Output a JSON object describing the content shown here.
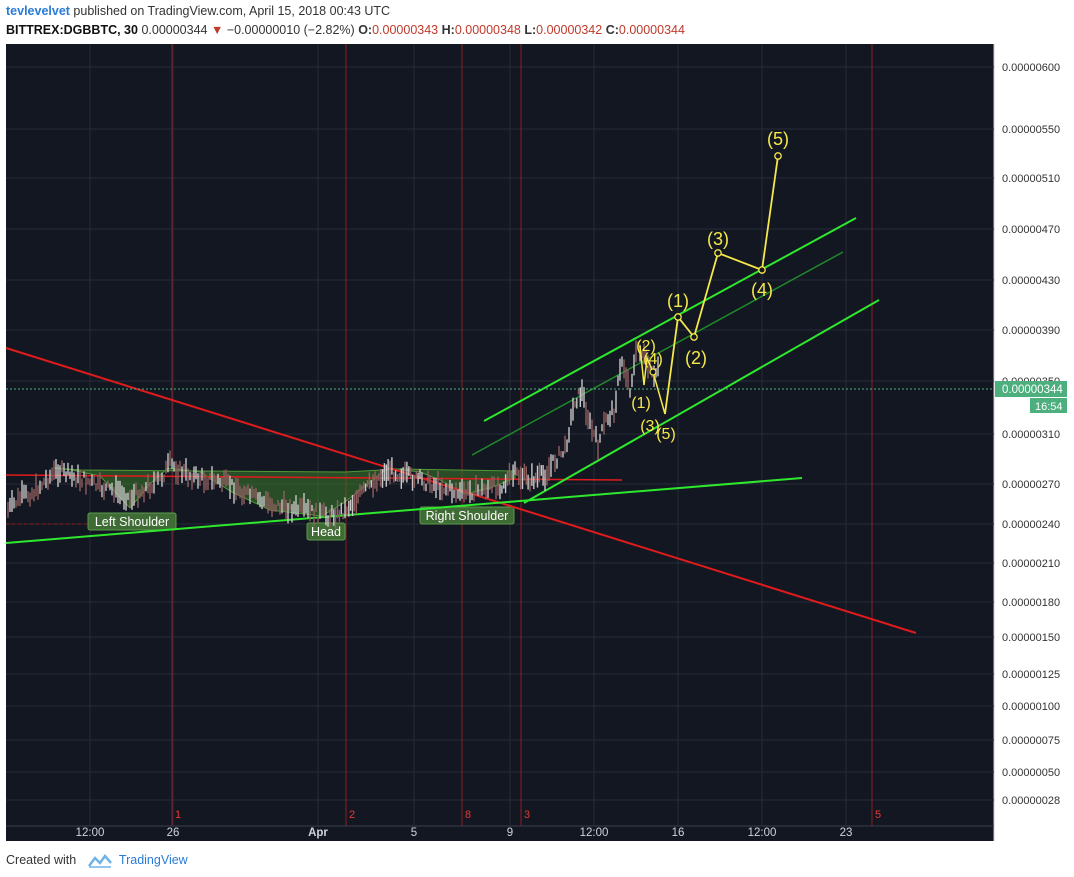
{
  "header": {
    "author": "tevlevelvet",
    "published_text": "published on TradingView.com, April 15, 2018 00:43 UTC",
    "symbol": "BITTREX:DGBBTC, 30",
    "last": "0.00000344",
    "change": "−0.00000010 (−2.82%)",
    "o_label": "O:",
    "o": "0.00000343",
    "h_label": "H:",
    "h": "0.00000348",
    "l_label": "L:",
    "l": "0.00000342",
    "c_label": "C:",
    "c": "0.00000344"
  },
  "footer": {
    "created_with": "Created with",
    "brand": "TradingView"
  },
  "colors": {
    "background": "#131722",
    "grid": "#262b38",
    "red_line": "#e01b1b",
    "green_line": "#2ee82e",
    "wave": "#f5e84a",
    "price_badge": "#4caf7d",
    "pattern_fill": "#3d7a2a"
  },
  "chart_data": {
    "type": "line",
    "title": "",
    "xlabel": "",
    "ylabel": "",
    "y_scale": "log",
    "ylim": [
      2.5e-07,
      6e-07
    ],
    "x_ticks": [
      "12:00",
      "26",
      "Apr",
      "5",
      "9",
      "12:00",
      "16",
      "12:00",
      "23"
    ],
    "y_ticks": [
      "0.00000600",
      "0.00000550",
      "0.00000510",
      "0.00000470",
      "0.00000430",
      "0.00000390",
      "0.00000350",
      "0.00000310",
      "0.00000270",
      "0.00000240",
      "0.00000210",
      "0.00000180",
      "0.00000150",
      "0.00000125",
      "0.00000100",
      "0.00000075",
      "0.00000050",
      "0.00000028"
    ],
    "last_price": "0.00000344",
    "countdown": "16:54",
    "cycle_labels": [
      "1",
      "2",
      "8",
      "3",
      "5"
    ],
    "pattern_labels": [
      "Left Shoulder",
      "Head",
      "Right Shoulder"
    ],
    "wave_labels_small": [
      "(1)",
      "(2)",
      "(3)",
      "(4)",
      "(5)"
    ],
    "wave_labels_large": [
      "(1)",
      "(2)",
      "(3)",
      "(4)",
      "(5)"
    ],
    "grid": true,
    "legend": "none"
  }
}
